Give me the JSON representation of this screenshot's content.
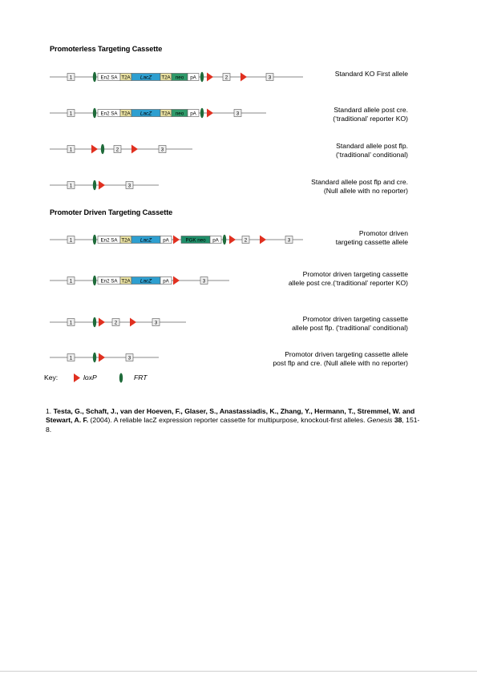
{
  "sections": {
    "promoterless_title": "Promoterless Targeting Cassette",
    "promoter_driven_title": "Promoter Driven Targeting Cassette"
  },
  "alleles": [
    {
      "id": "pl-1",
      "label_lines": [
        "Standard KO First allele"
      ]
    },
    {
      "id": "pl-2",
      "label_lines": [
        "Standard allele post cre.",
        "(‘traditional’ reporter KO)"
      ]
    },
    {
      "id": "pl-3",
      "label_lines": [
        "Standard allele post flp.",
        "(‘traditional’ conditional)"
      ]
    },
    {
      "id": "pl-4",
      "label_lines": [
        "Standard allele post flp and cre.",
        "(Null allele with no reporter)"
      ]
    },
    {
      "id": "pd-1",
      "label_lines": [
        "Promotor driven",
        "targeting cassette allele"
      ]
    },
    {
      "id": "pd-2",
      "label_lines": [
        "Promotor driven targeting cassette",
        "allele post cre.(‘traditional’ reporter KO)"
      ]
    },
    {
      "id": "pd-3",
      "label_lines": [
        "Promotor driven targeting cassette",
        "allele post flp.  (‘traditional’ conditional)"
      ]
    },
    {
      "id": "pd-4",
      "label_lines": [
        "Promotor driven targeting cassette allele",
        "post flp and cre.  (Null allele with no reporter)"
      ]
    }
  ],
  "elements": {
    "exon_1": "1",
    "exon_2": "2",
    "exon_3": "3",
    "en2sa": "En2 SA",
    "t2a": "T2A",
    "lacz": "LacZ",
    "neo": "neo",
    "pa": "pA",
    "pgk_neo": "PGK  neo"
  },
  "key": {
    "title": "Key:",
    "loxp": "loxP",
    "frt": "FRT"
  },
  "reference": {
    "number": "1.",
    "authors": "Testa, G., Schaft, J., van der Hoeven, F., Glaser, S., Anastassiadis, K., Zhang, Y., Hermann, T., Stremmel, W. and Stewart, A. F.",
    "year": " (2004). A reliable lacZ expression reporter cassette for multipurpose, knockout-first alleles. ",
    "journal": "Genesis",
    "volume": "38",
    "pages": ", 151-8."
  },
  "colors": {
    "loxp": "#e03020",
    "frt": "#1f6b3a",
    "lacz": "#2e9fd0",
    "t2a": "#e8e0a0",
    "neo": "#2f9a6a",
    "pgk_neo": "#1f8f6a",
    "exon_fill": "#eeeeee",
    "line": "#8a8a8a"
  }
}
